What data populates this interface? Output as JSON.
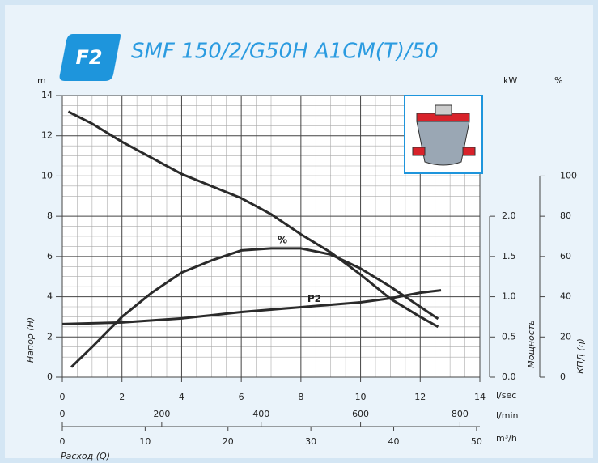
{
  "badge": "F2",
  "chart_data": {
    "type": "line",
    "title": "SMF 150/2/G50H A1CM(T)/50",
    "ylabel": "Напор (H)",
    "y2label": "Мощность",
    "y3label": "КПД (η)",
    "xlabel": "Расход (Q)",
    "yunit": "m",
    "y2unit": "kW",
    "y3unit": "%",
    "xunit": "l/sec",
    "x2unit": "l/min",
    "x3unit": "m³/h",
    "xlim": [
      0,
      14
    ],
    "xticks": [
      0,
      2,
      4,
      6,
      8,
      10,
      12,
      14
    ],
    "x2lim": [
      0,
      840
    ],
    "x2ticks": [
      0,
      200,
      400,
      600,
      800
    ],
    "x3lim": [
      0,
      50.4
    ],
    "x3ticks": [
      0,
      10,
      20,
      30,
      40,
      50
    ],
    "ylim": [
      0,
      14
    ],
    "yticks": [
      0,
      2,
      4,
      6,
      8,
      10,
      12,
      14
    ],
    "y2lim": [
      0,
      3.5
    ],
    "y2ticks": [
      {
        "value": 0,
        "label": "0.0"
      },
      0.5,
      {
        "value": 1,
        "label": "1.0"
      },
      1.5,
      {
        "value": 2,
        "label": "2.0"
      }
    ],
    "y3lim": [
      0,
      140
    ],
    "y3ticks": [
      0,
      20,
      40,
      60,
      80,
      100
    ],
    "grid": true,
    "series": [
      {
        "color": "#2a2a2a",
        "axis": "y",
        "x": [
          0.2,
          1,
          2,
          3,
          4,
          5,
          6,
          7,
          8,
          9,
          10,
          11,
          12,
          12.6
        ],
        "values": [
          13.2,
          12.6,
          11.7,
          10.9,
          10.1,
          9.5,
          8.9,
          8.1,
          7.1,
          6.2,
          5.1,
          3.9,
          3.0,
          2.5
        ]
      },
      {
        "name": "%",
        "color": "#2a2a2a",
        "axis": "y3",
        "x": [
          0.3,
          1,
          2,
          3,
          4,
          5,
          6,
          7,
          8,
          9,
          10,
          11,
          12,
          12.6
        ],
        "values": [
          5,
          15,
          30,
          42,
          52,
          58,
          63,
          64,
          64,
          61,
          54,
          45,
          35,
          29
        ]
      },
      {
        "name": "P2",
        "color": "#2a2a2a",
        "axis": "y2",
        "x": [
          0,
          2,
          4,
          6,
          8,
          10,
          11,
          12,
          12.7
        ],
        "values": [
          0.66,
          0.68,
          0.73,
          0.81,
          0.87,
          0.93,
          0.98,
          1.05,
          1.08
        ]
      }
    ]
  }
}
